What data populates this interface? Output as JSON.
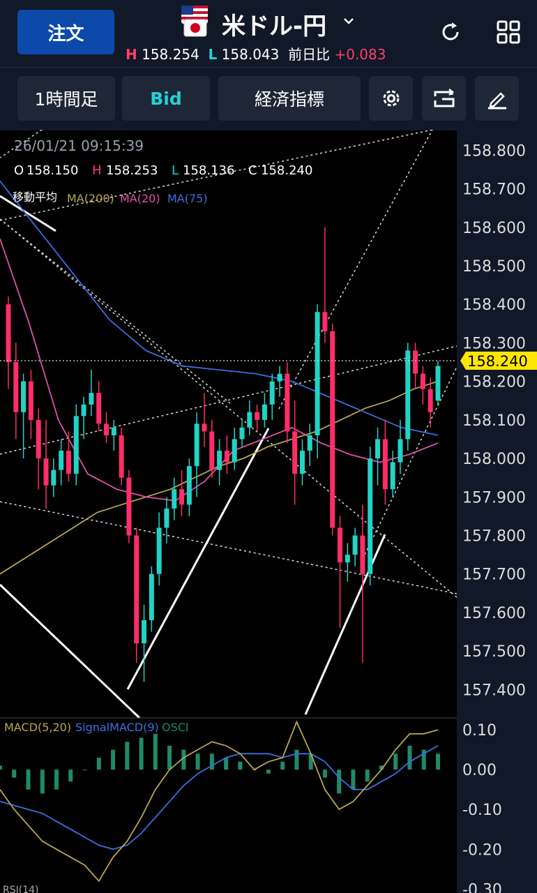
{
  "header": {
    "order_label": "注文",
    "pair": "米ドル-円",
    "high_label": "H",
    "high_value": "158.254",
    "low_label": "L",
    "low_value": "158.043",
    "prev_label": "前日比",
    "change": "+0.083",
    "icons": [
      "refresh-icon",
      "grid-icon"
    ]
  },
  "toolbar": {
    "timeframe": "1時間足",
    "price_type": "Bid",
    "indicators": "経済指標",
    "icons": [
      "gear-icon",
      "screen-rotate-icon",
      "pencil-icon"
    ]
  },
  "ohlc": {
    "datetime": "26/01/21 09:15:39",
    "o_label": "O",
    "o": "158.150",
    "h_label": "H",
    "h": "158.253",
    "l_label": "L",
    "l": "158.136",
    "c_label": "C",
    "c": "158.240"
  },
  "ma_legend": {
    "title": "移動平均",
    "ma200": "MA(200)",
    "ma20": "MA(20)",
    "ma75": "MA(75)"
  },
  "macd_legend": {
    "macd": "MACD(5,20)",
    "signal": "SignalMACD(9)",
    "osci": "OSCI"
  },
  "rsi_label": "RSI(14)",
  "current_price": "158.240",
  "colors": {
    "up": "#22d3c5",
    "down": "#ff2d6a",
    "ma200": "#b8a84a",
    "ma20": "#e050a8",
    "ma75": "#3b6fe0",
    "macd": "#b8a84a",
    "signal": "#3b6fe0",
    "osci": "#1f8a6a",
    "price_tag": "#ffe600"
  },
  "chart_data": {
    "type": "candlestick",
    "timeframe": "1h",
    "y_axis": {
      "ticks": [
        "158.800",
        "158.700",
        "158.600",
        "158.500",
        "158.400",
        "158.300",
        "158.200",
        "158.100",
        "158.000",
        "157.900",
        "157.800",
        "157.700",
        "157.600",
        "157.500",
        "157.400"
      ],
      "range": [
        157.35,
        158.835
      ]
    },
    "candles": [
      {
        "o": 158.4,
        "h": 158.42,
        "l": 158.18,
        "c": 158.25
      },
      {
        "o": 158.25,
        "h": 158.3,
        "l": 158.05,
        "c": 158.12
      },
      {
        "o": 158.12,
        "h": 158.22,
        "l": 158.0,
        "c": 158.2
      },
      {
        "o": 158.2,
        "h": 158.23,
        "l": 158.05,
        "c": 158.1
      },
      {
        "o": 158.1,
        "h": 158.13,
        "l": 157.92,
        "c": 158.0
      },
      {
        "o": 158.0,
        "h": 158.1,
        "l": 157.87,
        "c": 157.93
      },
      {
        "o": 157.93,
        "h": 158.0,
        "l": 157.9,
        "c": 157.97
      },
      {
        "o": 157.97,
        "h": 158.05,
        "l": 157.93,
        "c": 158.02
      },
      {
        "o": 158.02,
        "h": 158.07,
        "l": 157.94,
        "c": 157.96
      },
      {
        "o": 157.96,
        "h": 158.14,
        "l": 157.93,
        "c": 158.11
      },
      {
        "o": 158.11,
        "h": 158.16,
        "l": 158.05,
        "c": 158.14
      },
      {
        "o": 158.14,
        "h": 158.23,
        "l": 158.11,
        "c": 158.17
      },
      {
        "o": 158.17,
        "h": 158.2,
        "l": 158.07,
        "c": 158.09
      },
      {
        "o": 158.09,
        "h": 158.12,
        "l": 158.04,
        "c": 158.06
      },
      {
        "o": 158.06,
        "h": 158.1,
        "l": 158.02,
        "c": 158.08
      },
      {
        "o": 158.06,
        "h": 158.08,
        "l": 157.93,
        "c": 157.95
      },
      {
        "o": 157.95,
        "h": 157.97,
        "l": 157.78,
        "c": 157.8
      },
      {
        "o": 157.8,
        "h": 157.82,
        "l": 157.47,
        "c": 157.52
      },
      {
        "o": 157.52,
        "h": 157.62,
        "l": 157.42,
        "c": 157.58
      },
      {
        "o": 157.58,
        "h": 157.72,
        "l": 157.55,
        "c": 157.7
      },
      {
        "o": 157.7,
        "h": 157.86,
        "l": 157.67,
        "c": 157.82
      },
      {
        "o": 157.82,
        "h": 157.9,
        "l": 157.78,
        "c": 157.87
      },
      {
        "o": 157.87,
        "h": 157.95,
        "l": 157.84,
        "c": 157.92
      },
      {
        "o": 157.92,
        "h": 157.97,
        "l": 157.85,
        "c": 157.88
      },
      {
        "o": 157.88,
        "h": 158.0,
        "l": 157.85,
        "c": 157.98
      },
      {
        "o": 157.98,
        "h": 158.12,
        "l": 157.9,
        "c": 158.09
      },
      {
        "o": 158.09,
        "h": 158.17,
        "l": 158.03,
        "c": 158.07
      },
      {
        "o": 158.07,
        "h": 158.1,
        "l": 157.95,
        "c": 157.97
      },
      {
        "o": 157.97,
        "h": 158.05,
        "l": 157.93,
        "c": 158.02
      },
      {
        "o": 158.02,
        "h": 158.06,
        "l": 157.96,
        "c": 157.99
      },
      {
        "o": 157.99,
        "h": 158.08,
        "l": 157.97,
        "c": 158.05
      },
      {
        "o": 158.05,
        "h": 158.1,
        "l": 158.03,
        "c": 158.08
      },
      {
        "o": 158.08,
        "h": 158.15,
        "l": 158.06,
        "c": 158.12
      },
      {
        "o": 158.12,
        "h": 158.14,
        "l": 158.07,
        "c": 158.1
      },
      {
        "o": 158.1,
        "h": 158.17,
        "l": 158.08,
        "c": 158.14
      },
      {
        "o": 158.14,
        "h": 158.22,
        "l": 158.1,
        "c": 158.2
      },
      {
        "o": 158.2,
        "h": 158.24,
        "l": 158.16,
        "c": 158.22
      },
      {
        "o": 158.22,
        "h": 158.25,
        "l": 158.04,
        "c": 158.07
      },
      {
        "o": 158.07,
        "h": 158.15,
        "l": 157.88,
        "c": 157.96
      },
      {
        "o": 157.96,
        "h": 158.05,
        "l": 157.93,
        "c": 158.02
      },
      {
        "o": 158.02,
        "h": 158.09,
        "l": 157.98,
        "c": 158.06
      },
      {
        "o": 158.06,
        "h": 158.4,
        "l": 158.0,
        "c": 158.38
      },
      {
        "o": 158.38,
        "h": 158.6,
        "l": 158.3,
        "c": 158.33
      },
      {
        "o": 158.33,
        "h": 158.35,
        "l": 157.8,
        "c": 157.82
      },
      {
        "o": 157.82,
        "h": 157.85,
        "l": 157.56,
        "c": 157.73
      },
      {
        "o": 157.73,
        "h": 157.78,
        "l": 157.68,
        "c": 157.75
      },
      {
        "o": 157.75,
        "h": 157.82,
        "l": 157.72,
        "c": 157.8
      },
      {
        "o": 157.8,
        "h": 157.88,
        "l": 157.47,
        "c": 157.7
      },
      {
        "o": 157.7,
        "h": 158.03,
        "l": 157.67,
        "c": 158.0
      },
      {
        "o": 158.0,
        "h": 158.08,
        "l": 157.93,
        "c": 158.05
      },
      {
        "o": 158.05,
        "h": 158.1,
        "l": 157.88,
        "c": 157.92
      },
      {
        "o": 157.92,
        "h": 158.02,
        "l": 157.9,
        "c": 157.99
      },
      {
        "o": 157.99,
        "h": 158.1,
        "l": 157.96,
        "c": 158.05
      },
      {
        "o": 158.05,
        "h": 158.3,
        "l": 158.02,
        "c": 158.28
      },
      {
        "o": 158.28,
        "h": 158.3,
        "l": 158.18,
        "c": 158.22
      },
      {
        "o": 158.22,
        "h": 158.24,
        "l": 158.14,
        "c": 158.18
      },
      {
        "o": 158.18,
        "h": 158.21,
        "l": 158.08,
        "c": 158.12
      },
      {
        "o": 158.15,
        "h": 158.253,
        "l": 158.136,
        "c": 158.24
      }
    ],
    "ma200": [
      157.7,
      157.74,
      157.78,
      157.82,
      157.86,
      157.88,
      157.9,
      157.92,
      157.95,
      157.98,
      158.0,
      158.03,
      158.05,
      158.07,
      158.1,
      158.13,
      158.15,
      158.18,
      158.2
    ],
    "ma75": [
      158.72,
      158.6,
      158.48,
      158.36,
      158.28,
      158.24,
      158.23,
      158.22,
      158.2,
      158.16,
      158.12,
      158.08,
      158.06
    ],
    "ma20": [
      158.57,
      158.35,
      158.1,
      157.96,
      157.92,
      157.9,
      157.89,
      157.94,
      158.02,
      158.05,
      158.08,
      158.04,
      158.01,
      157.99,
      158.01,
      158.04
    ],
    "macd_axis": {
      "ticks": [
        "0.10",
        "0.00",
        "-0.10",
        "-0.20",
        "-0.30"
      ],
      "range": [
        -0.31,
        0.13
      ]
    },
    "macd": [
      -0.05,
      -0.1,
      -0.14,
      -0.18,
      -0.2,
      -0.22,
      -0.24,
      -0.28,
      -0.22,
      -0.18,
      -0.12,
      -0.05,
      0.0,
      0.03,
      0.05,
      0.07,
      0.06,
      0.04,
      0.0,
      0.02,
      0.03,
      0.12,
      0.04,
      -0.05,
      -0.1,
      -0.08,
      -0.04,
      0.0,
      0.05,
      0.09,
      0.09,
      0.1
    ],
    "signal": [
      -0.08,
      -0.09,
      -0.1,
      -0.11,
      -0.13,
      -0.15,
      -0.17,
      -0.19,
      -0.2,
      -0.19,
      -0.16,
      -0.12,
      -0.08,
      -0.04,
      -0.01,
      0.01,
      0.03,
      0.04,
      0.04,
      0.04,
      0.03,
      0.04,
      0.04,
      0.02,
      -0.02,
      -0.05,
      -0.05,
      -0.03,
      -0.01,
      0.02,
      0.04,
      0.06
    ],
    "osci": [
      0.01,
      -0.02,
      -0.05,
      -0.06,
      -0.05,
      -0.03,
      0.0,
      0.03,
      0.05,
      0.07,
      0.08,
      0.09,
      0.06,
      0.05,
      0.04,
      0.04,
      0.03,
      0.02,
      0.0,
      -0.01,
      0.02,
      0.05,
      0.04,
      -0.02,
      -0.06,
      -0.05,
      -0.03,
      0.01,
      0.04,
      0.06,
      0.05,
      0.04
    ]
  }
}
